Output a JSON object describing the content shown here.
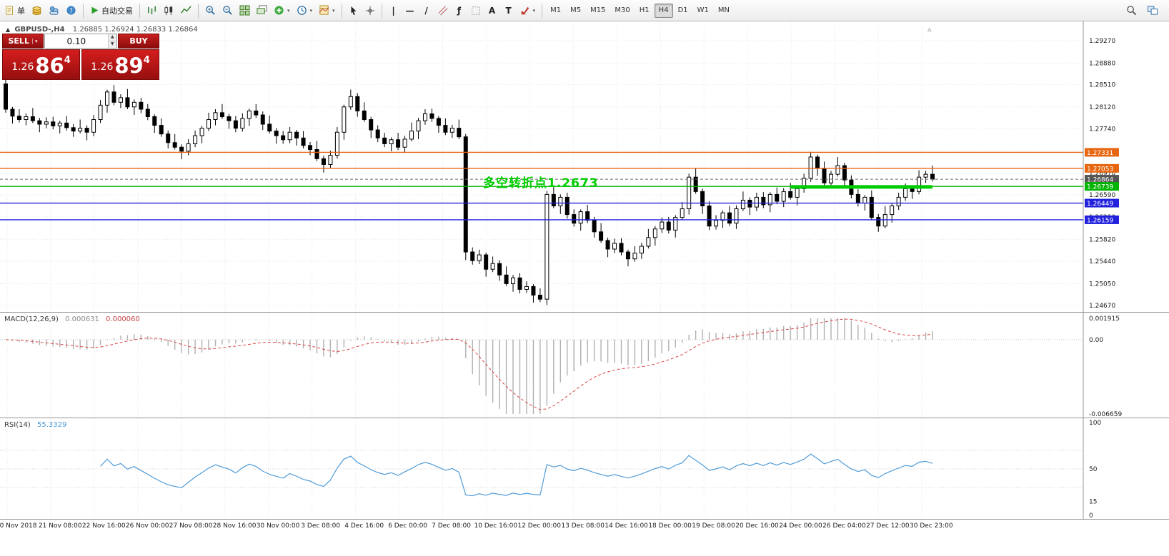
{
  "toolbar": {
    "new_order_label": "单",
    "autotrading_label": "自动交易",
    "text_tool": "A",
    "label_tool": "T",
    "fib_tool": "ƒ",
    "vline_tool": "|",
    "hline_tool": "—",
    "trend_tool": "/",
    "timeframes": [
      "M1",
      "M5",
      "M15",
      "M30",
      "H1",
      "H4",
      "D1",
      "W1",
      "MN"
    ],
    "active_timeframe": "H4"
  },
  "chart_header": {
    "symbol": "GBPUSD-,H4",
    "ohlc": "1.26885 1.26924 1.26833 1.26864"
  },
  "trade_panel": {
    "sell_label": "SELL",
    "buy_label": "BUY",
    "volume": "0.10",
    "sell_price": {
      "prefix": "1.26",
      "big": "86",
      "sup": "4"
    },
    "buy_price": {
      "prefix": "1.26",
      "big": "89",
      "sup": "4"
    }
  },
  "annotation": {
    "text": "多空转折点1.2673"
  },
  "indicators": {
    "macd": {
      "name": "MACD(12,26,9)",
      "value": "0.000631",
      "signal_value": "0.000060"
    },
    "rsi": {
      "name": "RSI(14)",
      "value": "55.3329"
    }
  },
  "scroll_marker": "▵",
  "colors": {
    "bull": "#ffffff",
    "bear": "#000000",
    "wick": "#000000",
    "grid": "#e7e7e7",
    "axis_text": "#1c1c1c",
    "orange_line": "#e8650f",
    "blue_line": "#2121dd",
    "green_line": "#00b400",
    "green_segment": "#00cc00",
    "current_price": "#6e6e6e",
    "macd_hist": "#b0b0b0",
    "macd_signal": "#d94545",
    "rsi_line": "#4f9bd8"
  },
  "chart_data": [
    {
      "type": "candlestick",
      "title": "GBPUSD-,H4",
      "ylim": [
        1.24559,
        1.29605
      ],
      "first_open": 1.2852,
      "closes": [
        1.2808,
        1.2796,
        1.279,
        1.2795,
        1.2788,
        1.2782,
        1.2786,
        1.2779,
        1.2784,
        1.2776,
        1.277,
        1.2775,
        1.2768,
        1.279,
        1.2815,
        1.2838,
        1.282,
        1.2828,
        1.2812,
        1.282,
        1.2808,
        1.2795,
        1.278,
        1.2765,
        1.275,
        1.2742,
        1.2735,
        1.2748,
        1.2762,
        1.2775,
        1.279,
        1.2802,
        1.2795,
        1.2788,
        1.2775,
        1.2792,
        1.2805,
        1.2798,
        1.2782,
        1.277,
        1.2762,
        1.2755,
        1.2768,
        1.2758,
        1.2745,
        1.2738,
        1.2722,
        1.2712,
        1.2728,
        1.2768,
        1.2812,
        1.283,
        1.2805,
        1.279,
        1.2772,
        1.2758,
        1.2748,
        1.2755,
        1.2742,
        1.2756,
        1.277,
        1.2788,
        1.28,
        1.2792,
        1.278,
        1.2768,
        1.2775,
        1.276,
        1.256,
        1.2545,
        1.2555,
        1.253,
        1.254,
        1.252,
        1.2505,
        1.2515,
        1.2495,
        1.25,
        1.2485,
        1.2478,
        1.266,
        1.264,
        1.2655,
        1.2625,
        1.261,
        1.263,
        1.2615,
        1.2595,
        1.258,
        1.2565,
        1.2575,
        1.256,
        1.2548,
        1.2558,
        1.257,
        1.2585,
        1.26,
        1.2612,
        1.2598,
        1.262,
        1.2635,
        1.269,
        1.2665,
        1.264,
        1.2605,
        1.2615,
        1.2628,
        1.261,
        1.2635,
        1.265,
        1.2638,
        1.2655,
        1.2642,
        1.266,
        1.2648,
        1.2665,
        1.2655,
        1.267,
        1.2688,
        1.2725,
        1.2705,
        1.268,
        1.2695,
        1.271,
        1.2685,
        1.266,
        1.2645,
        1.2655,
        1.262,
        1.2605,
        1.2625,
        1.264,
        1.2655,
        1.267,
        1.2665,
        1.269,
        1.2695,
        1.26864
      ],
      "wick_high": [
        0.0009,
        0.0004,
        0.0012,
        0.0006,
        0.0015,
        0.0005,
        0.0008
      ],
      "wick_low": [
        0.0006,
        0.0013,
        0.0005,
        0.001,
        0.0004,
        0.0014,
        0.0007
      ],
      "y_ticks": [
        "1.29270",
        "1.28880",
        "1.28510",
        "1.28120",
        "1.27740",
        "1.27360",
        "1.26970",
        "1.26590",
        "1.26210",
        "1.25820",
        "1.25440",
        "1.25050",
        "1.24670"
      ],
      "x_ticks": [
        "20 Nov 2018",
        "21 Nov 08:00",
        "22 Nov 16:00",
        "26 Nov 00:00",
        "27 Nov 08:00",
        "28 Nov 16:00",
        "30 Nov 00:00",
        "3 Dec 08:00",
        "4 Dec 16:00",
        "6 Dec 00:00",
        "7 Dec 08:00",
        "10 Dec 16:00",
        "12 Dec 00:00",
        "13 Dec 08:00",
        "14 Dec 16:00",
        "18 Dec 00:00",
        "19 Dec 08:00",
        "20 Dec 16:00",
        "24 Dec 00:00",
        "26 Dec 04:00",
        "27 Dec 12:00",
        "30 Dec 23:00"
      ],
      "hlines": [
        {
          "price": 1.27331,
          "label": "1.27331",
          "style": "orange"
        },
        {
          "price": 1.27053,
          "label": "1.27053",
          "style": "orange"
        },
        {
          "price": 1.26864,
          "label": "1.26864",
          "style": "current"
        },
        {
          "price": 1.26739,
          "label": "1.26739",
          "style": "green"
        },
        {
          "price": 1.26449,
          "label": "1.26449",
          "style": "blue"
        },
        {
          "price": 1.26159,
          "label": "1.26159",
          "style": "blue"
        }
      ],
      "green_segment": {
        "price": 1.2673,
        "from_index": 116,
        "to_index": 137,
        "width": 5
      }
    },
    {
      "type": "bar",
      "name": "MACD(12,26,9)",
      "computed_from": "closes",
      "fast": 12,
      "slow": 26,
      "signal": 9,
      "current_value": 0.000631,
      "current_signal": 6e-05,
      "ylim": [
        -0.006659,
        0.001915
      ],
      "y_ticks": [
        "0.001915",
        "0.00",
        "-0.006659"
      ]
    },
    {
      "type": "line",
      "name": "RSI(14)",
      "computed_from": "closes",
      "period": 14,
      "current_value": 55.3329,
      "ylim": [
        0,
        100
      ],
      "levels": [
        70,
        50,
        30
      ],
      "y_ticks": [
        "100",
        "50",
        "15",
        "0"
      ]
    }
  ]
}
